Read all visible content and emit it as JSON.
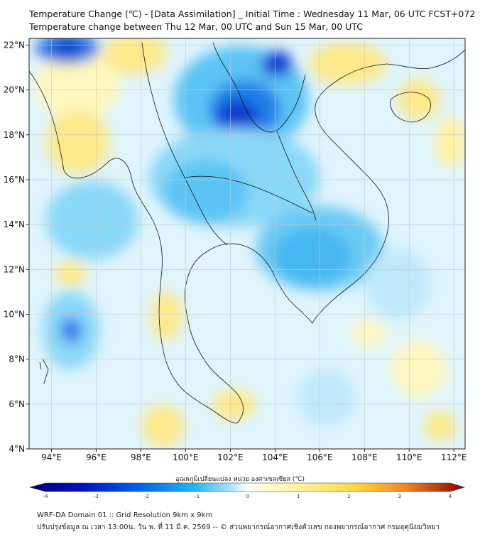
{
  "header": {
    "title_line1": "Temperature Change (℃) - [Data Assimilation] _ Initial Time : Wednesday 11 Mar, 06 UTC FCST+072",
    "title_line2": "Temperature change between Thu 12 Mar, 00 UTC and Sun 15 Mar, 00 UTC"
  },
  "map": {
    "lon_labels": [
      "94°E",
      "96°E",
      "98°E",
      "100°E",
      "102°E",
      "104°E",
      "106°E",
      "108°E",
      "110°E",
      "112°E"
    ],
    "lat_labels": [
      "22°N",
      "20°N",
      "18°N",
      "16°N",
      "14°N",
      "12°N",
      "10°N",
      "8°N",
      "6°N",
      "4°N"
    ],
    "extent": {
      "lon": [
        93,
        112.5
      ],
      "lat": [
        4,
        22.3
      ]
    },
    "land_color": "#ffffff",
    "grid": true
  },
  "colorbar": {
    "label": "อุณหภูมิเปลี่ยนแปลง หน่วย องศาเซลเซียส (℃)",
    "ticks": [
      "-4",
      "-3",
      "-2",
      "-1",
      "0",
      "1",
      "2",
      "3",
      "4"
    ],
    "colors": [
      "#00007a",
      "#0010c8",
      "#0050f0",
      "#10a8f0",
      "#7ad8f8",
      "#dff4fc",
      "#fffbe0",
      "#fff2a0",
      "#fcd840",
      "#f8a020",
      "#e04010",
      "#8a0000"
    ]
  },
  "footer": {
    "line1": "WRF-DA Domain 01 :: Grid Resolution 9km x 9km",
    "line2": "ปรับปรุงข้อมูล ณ เวลา 13:00น. วัน พ. ที่ 11 มี.ค. 2569 -- © ส่วนพยากรณ์อากาศเชิงตัวเลข กองพยากรณ์อากาศ กรมอุตุนิยมวิทยา"
  }
}
